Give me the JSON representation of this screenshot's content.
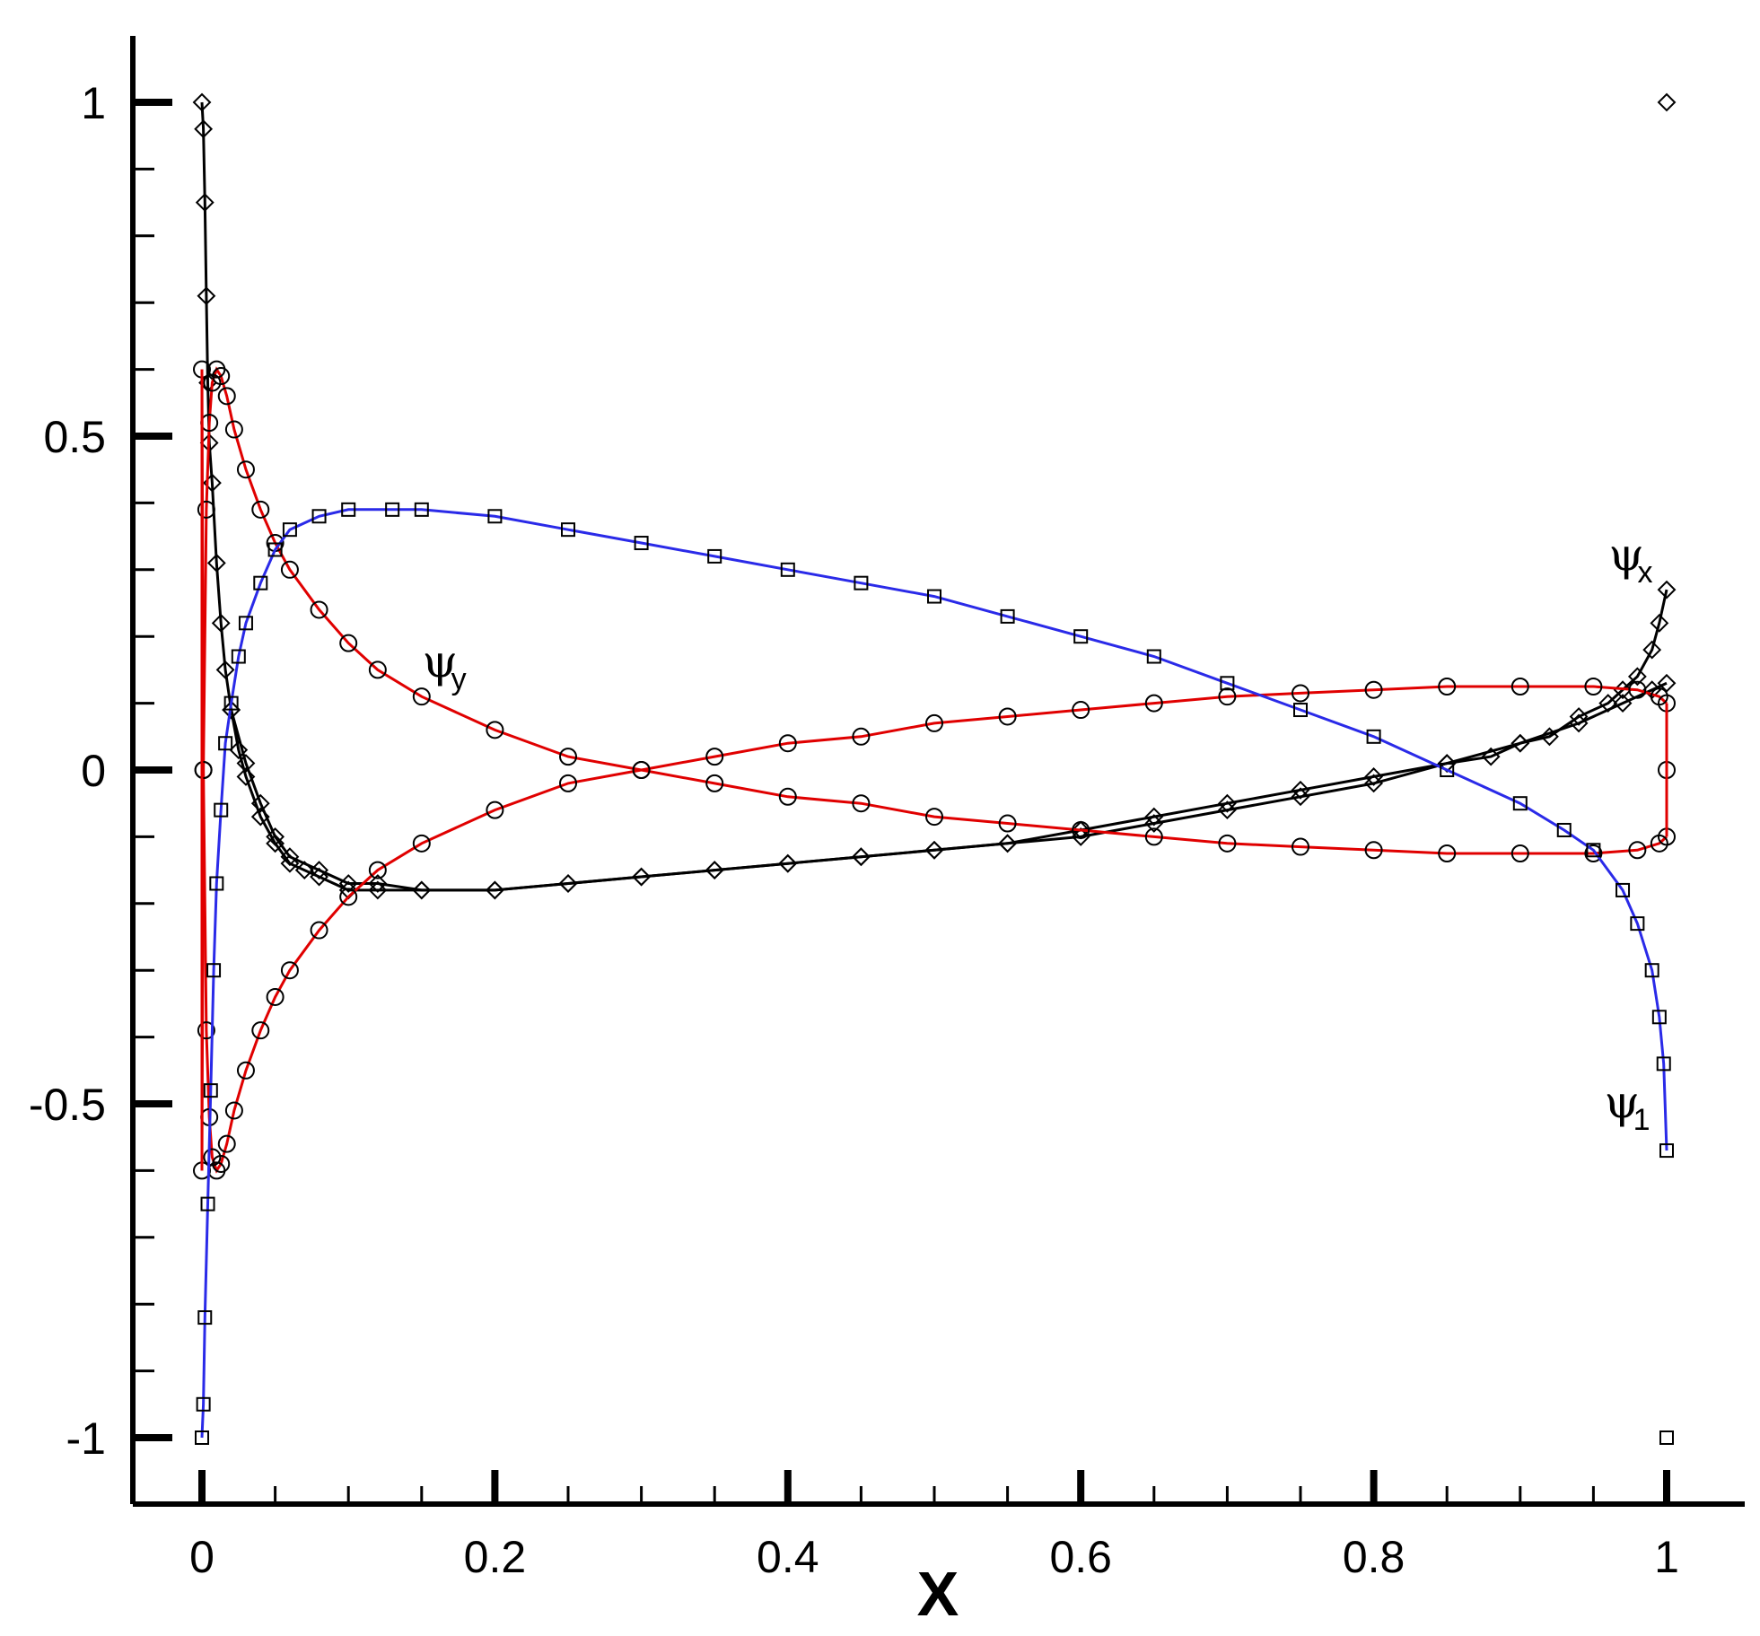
{
  "chart_data": {
    "type": "line",
    "title": "",
    "xlabel": "X",
    "ylabel": "",
    "xlim": [
      -0.05,
      1.05
    ],
    "ylim": [
      -1.1,
      1.1
    ],
    "grid": false,
    "legend": "none",
    "x_ticks": [
      0,
      0.2,
      0.4,
      0.6,
      0.8,
      1
    ],
    "x_tick_labels": [
      "0",
      "0.2",
      "0.4",
      "0.6",
      "0.8",
      "1"
    ],
    "y_ticks": [
      -1,
      -0.5,
      0,
      0.5,
      1
    ],
    "y_tick_labels": [
      "-1",
      "-0.5",
      "0",
      "0.5",
      "1"
    ],
    "colors": {
      "psi_x": "#000000",
      "psi_y": "#e00000",
      "psi_1": "#2a2ae8"
    },
    "annotations": [
      {
        "symbol": "ψ",
        "sub": "x",
        "x": 0.985,
        "y": 0.3
      },
      {
        "symbol": "ψ",
        "sub": "y",
        "x": 0.175,
        "y": 0.14
      },
      {
        "symbol": "ψ",
        "sub": "1",
        "x": 0.982,
        "y": -0.52
      }
    ],
    "series": [
      {
        "key": "psi_x",
        "marker": "diamond",
        "x": [
          0,
          0.001,
          0.002,
          0.003,
          0.004,
          0.005,
          0.007,
          0.01,
          0.013,
          0.016,
          0.02,
          0.025,
          0.03,
          0.04,
          0.05,
          0.06,
          0.07,
          0.08,
          0.1,
          0.12,
          0.15,
          0.2,
          0.25,
          0.3,
          0.35,
          0.4,
          0.45,
          0.5,
          0.55,
          0.6,
          0.65,
          0.7,
          0.75,
          0.8,
          0.85,
          0.88,
          0.9,
          0.92,
          0.94,
          0.96,
          0.97,
          0.98,
          0.99,
          0.995,
          1.0
        ],
        "y": [
          1.0,
          0.96,
          0.85,
          0.71,
          0.58,
          0.49,
          0.43,
          0.31,
          0.22,
          0.15,
          0.09,
          0.03,
          -0.01,
          -0.07,
          -0.11,
          -0.14,
          -0.15,
          -0.16,
          -0.18,
          -0.18,
          -0.18,
          -0.18,
          -0.17,
          -0.16,
          -0.15,
          -0.14,
          -0.13,
          -0.12,
          -0.11,
          -0.09,
          -0.07,
          -0.05,
          -0.03,
          -0.01,
          0.01,
          0.02,
          0.04,
          0.05,
          0.08,
          0.1,
          0.12,
          0.14,
          0.18,
          0.22,
          0.27
        ]
      },
      {
        "key": "psi_x_lower",
        "marker": "diamond",
        "x": [
          0.02,
          0.03,
          0.04,
          0.05,
          0.06,
          0.08,
          0.1,
          0.12,
          0.15,
          0.2,
          0.25,
          0.3,
          0.35,
          0.4,
          0.45,
          0.5,
          0.55,
          0.6,
          0.65,
          0.7,
          0.75,
          0.8,
          0.85,
          0.9,
          0.94,
          0.97,
          0.99,
          1.0
        ],
        "y": [
          0.09,
          0.01,
          -0.05,
          -0.1,
          -0.13,
          -0.15,
          -0.17,
          -0.17,
          -0.18,
          -0.18,
          -0.17,
          -0.16,
          -0.15,
          -0.14,
          -0.13,
          -0.12,
          -0.11,
          -0.1,
          -0.08,
          -0.06,
          -0.04,
          -0.02,
          0.01,
          0.04,
          0.07,
          0.1,
          0.12,
          0.13
        ]
      },
      {
        "key": "psi_y",
        "marker": "circle",
        "x": [
          0,
          0.001,
          0.003,
          0.005,
          0.007,
          0.01,
          0.013,
          0.017,
          0.022,
          0.03,
          0.04,
          0.05,
          0.06,
          0.08,
          0.1,
          0.12,
          0.15,
          0.2,
          0.25,
          0.3,
          0.35,
          0.4,
          0.45,
          0.5,
          0.55,
          0.6,
          0.65,
          0.7,
          0.75,
          0.8,
          0.85,
          0.9,
          0.95,
          0.98,
          0.995,
          1.0
        ],
        "y": [
          -0.6,
          0.0,
          0.39,
          0.52,
          0.58,
          0.6,
          0.59,
          0.56,
          0.51,
          0.45,
          0.39,
          0.34,
          0.3,
          0.24,
          0.19,
          0.15,
          0.11,
          0.06,
          0.02,
          0.0,
          -0.02,
          -0.04,
          -0.05,
          -0.07,
          -0.08,
          -0.09,
          -0.1,
          -0.11,
          -0.115,
          -0.12,
          -0.125,
          -0.125,
          -0.125,
          -0.12,
          -0.11,
          -0.1
        ]
      },
      {
        "key": "psi_y_mirror",
        "marker": "circle",
        "x": [
          0,
          0.001,
          0.003,
          0.005,
          0.007,
          0.01,
          0.013,
          0.017,
          0.022,
          0.03,
          0.04,
          0.05,
          0.06,
          0.08,
          0.1,
          0.12,
          0.15,
          0.2,
          0.25,
          0.3,
          0.35,
          0.4,
          0.45,
          0.5,
          0.55,
          0.6,
          0.65,
          0.7,
          0.75,
          0.8,
          0.85,
          0.9,
          0.95,
          0.98,
          0.995,
          1.0
        ],
        "y": [
          0.6,
          0.0,
          -0.39,
          -0.52,
          -0.58,
          -0.6,
          -0.59,
          -0.56,
          -0.51,
          -0.45,
          -0.39,
          -0.34,
          -0.3,
          -0.24,
          -0.19,
          -0.15,
          -0.11,
          -0.06,
          -0.02,
          0.0,
          0.02,
          0.04,
          0.05,
          0.07,
          0.08,
          0.09,
          0.1,
          0.11,
          0.115,
          0.12,
          0.125,
          0.125,
          0.125,
          0.12,
          0.11,
          0.1
        ]
      },
      {
        "key": "psi_1",
        "marker": "square",
        "x": [
          0,
          0.001,
          0.002,
          0.004,
          0.006,
          0.008,
          0.01,
          0.013,
          0.016,
          0.02,
          0.025,
          0.03,
          0.04,
          0.05,
          0.06,
          0.08,
          0.1,
          0.13,
          0.15,
          0.2,
          0.25,
          0.3,
          0.35,
          0.4,
          0.45,
          0.5,
          0.55,
          0.6,
          0.65,
          0.7,
          0.75,
          0.8,
          0.85,
          0.9,
          0.93,
          0.95,
          0.97,
          0.98,
          0.99,
          0.995,
          0.998,
          1.0
        ],
        "y": [
          -1.0,
          -0.95,
          -0.82,
          -0.65,
          -0.48,
          -0.3,
          -0.17,
          -0.06,
          0.04,
          0.1,
          0.17,
          0.22,
          0.28,
          0.33,
          0.36,
          0.38,
          0.39,
          0.39,
          0.39,
          0.38,
          0.36,
          0.34,
          0.32,
          0.3,
          0.28,
          0.26,
          0.23,
          0.2,
          0.17,
          0.13,
          0.09,
          0.05,
          0.0,
          -0.05,
          -0.09,
          -0.12,
          -0.18,
          -0.23,
          -0.3,
          -0.37,
          -0.44,
          -0.57
        ]
      },
      {
        "key": "edge_points",
        "marker": "mixed",
        "x": [
          1.0,
          1.0,
          1.0
        ],
        "y": [
          1.0,
          0.0,
          -1.0
        ]
      }
    ]
  }
}
